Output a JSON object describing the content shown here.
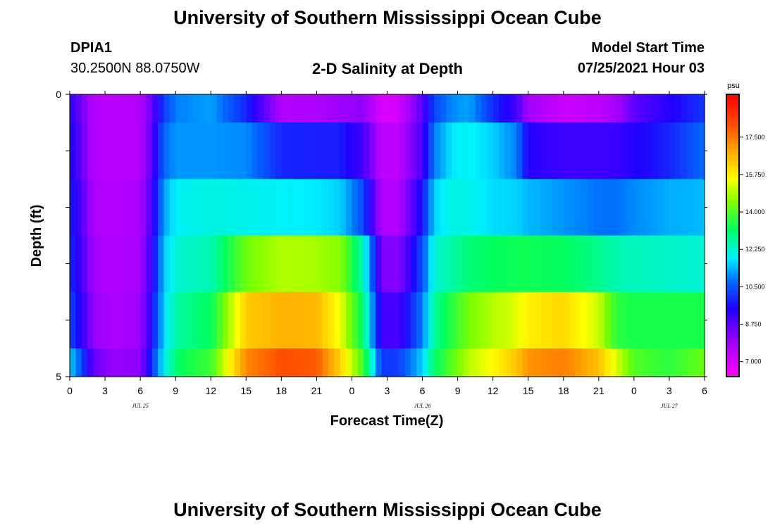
{
  "header": {
    "title_top": "University of Southern Mississippi Ocean Cube",
    "title_bottom": "University of Southern Mississippi Ocean Cube",
    "station": "DPIA1",
    "coords": "30.2500N  88.0750W",
    "plot_title": "2-D Salinity at Depth",
    "model_start_label": "Model Start Time",
    "model_start_value": "07/25/2021 Hour 03"
  },
  "chart_data": {
    "type": "heatmap",
    "title": "2-D Salinity at Depth",
    "xlabel": "Forecast Time(Z)",
    "ylabel": "Depth (ft)",
    "x_ticks": [
      "0",
      "3",
      "6",
      "9",
      "12",
      "15",
      "18",
      "21",
      "0",
      "3",
      "6",
      "9",
      "12",
      "15",
      "18",
      "21",
      "0",
      "3",
      "6"
    ],
    "date_labels": [
      {
        "label": "JUL 25",
        "tick_index": 2
      },
      {
        "label": "JUL 26",
        "tick_index": 10
      },
      {
        "label": "JUL 27",
        "tick_index": 17
      }
    ],
    "y_ticks": [
      "0",
      "5"
    ],
    "y_range": [
      0,
      5
    ],
    "x_hours_range": [
      0,
      54
    ],
    "colorbar": {
      "unit": "psu",
      "min": 6.3,
      "max": 19.5,
      "ticks": [
        "17.500",
        "15.750",
        "14.000",
        "12.250",
        "10.500",
        "8.750",
        "7.000"
      ],
      "tick_values": [
        17.5,
        15.75,
        14.0,
        12.25,
        10.5,
        8.75,
        7.0
      ]
    },
    "keyframes_hours": [
      0,
      1,
      2,
      3.5,
      6,
      7,
      8,
      9,
      12,
      15,
      18,
      21,
      23,
      25,
      26.5,
      28,
      30,
      31,
      32.5,
      34,
      36,
      38,
      39,
      42,
      45,
      46.5,
      48,
      51,
      54
    ],
    "rows": [
      {
        "depth_range": [
          0,
          0.5
        ],
        "values": [
          9.4,
          8.4,
          7.6,
          7.4,
          7.6,
          8.6,
          10.2,
          10.9,
          11.2,
          9.9,
          7.6,
          7.7,
          7.9,
          8.1,
          6.9,
          7.1,
          8.8,
          10.3,
          11.0,
          11.2,
          10.0,
          9.0,
          7.8,
          7.2,
          7.4,
          7.8,
          8.7,
          9.4,
          10.1
        ]
      },
      {
        "depth_range": [
          0.5,
          1.5
        ],
        "values": [
          9.6,
          8.6,
          7.6,
          7.4,
          7.6,
          8.8,
          10.7,
          11.1,
          11.1,
          11.0,
          9.9,
          9.8,
          9.8,
          9.0,
          7.4,
          7.4,
          9.0,
          10.9,
          11.8,
          11.9,
          11.6,
          10.9,
          9.4,
          9.1,
          9.1,
          9.2,
          9.4,
          9.9,
          10.7
        ]
      },
      {
        "depth_range": [
          1.5,
          2.5
        ],
        "values": [
          9.9,
          8.8,
          7.7,
          7.5,
          7.7,
          9.1,
          11.2,
          11.9,
          12.1,
          12.0,
          11.9,
          11.8,
          11.6,
          10.3,
          7.6,
          7.6,
          9.7,
          11.6,
          12.1,
          12.0,
          11.7,
          11.6,
          11.4,
          11.1,
          10.8,
          10.8,
          11.0,
          11.3,
          11.4
        ]
      },
      {
        "depth_range": [
          2.5,
          3.5
        ],
        "values": [
          10.0,
          9.0,
          7.8,
          7.6,
          7.8,
          9.3,
          11.5,
          12.2,
          12.5,
          14.3,
          14.9,
          14.8,
          14.5,
          12.4,
          8.3,
          8.2,
          10.4,
          12.2,
          12.6,
          13.0,
          13.2,
          13.3,
          13.3,
          13.2,
          12.8,
          12.5,
          12.4,
          12.3,
          12.2
        ]
      },
      {
        "depth_range": [
          3.5,
          4.5
        ],
        "values": [
          10.3,
          9.3,
          8.0,
          7.7,
          7.9,
          9.6,
          11.6,
          12.6,
          13.2,
          16.3,
          16.7,
          16.6,
          15.4,
          13.0,
          9.0,
          9.0,
          10.9,
          12.7,
          13.6,
          14.4,
          14.9,
          15.3,
          15.8,
          16.1,
          15.1,
          13.6,
          13.4,
          13.4,
          13.4
        ]
      },
      {
        "depth_range": [
          4.5,
          5
        ],
        "values": [
          11.6,
          10.4,
          8.6,
          8.0,
          8.1,
          10.1,
          11.9,
          13.1,
          13.8,
          17.3,
          18.1,
          17.9,
          16.2,
          13.8,
          10.1,
          10.2,
          11.6,
          13.1,
          14.1,
          15.0,
          15.6,
          16.4,
          17.1,
          17.4,
          16.5,
          15.2,
          14.0,
          13.6,
          14.3
        ]
      }
    ]
  }
}
